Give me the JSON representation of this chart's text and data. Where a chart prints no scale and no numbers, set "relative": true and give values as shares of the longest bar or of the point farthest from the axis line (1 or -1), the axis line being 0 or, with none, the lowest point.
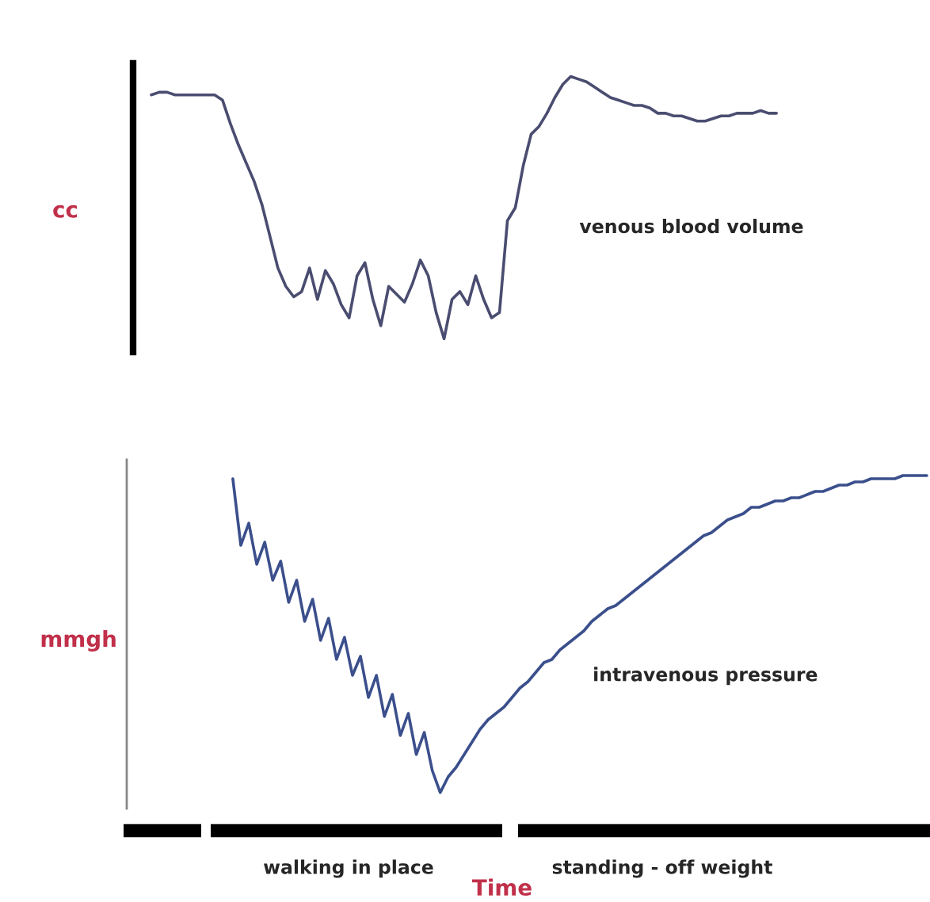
{
  "chart_data": [
    {
      "type": "line",
      "relative": true,
      "ylabel": "cc",
      "annotations": [
        "venous blood volume"
      ],
      "categories": [
        null,
        null,
        null,
        null,
        null,
        null,
        null,
        null,
        null,
        null,
        null,
        null,
        null,
        null,
        null,
        null,
        null,
        null,
        null,
        null,
        null,
        null,
        null,
        null,
        null,
        null,
        null,
        null,
        null,
        null,
        null,
        null,
        null,
        null,
        null,
        null,
        null,
        null,
        null,
        null,
        null,
        null,
        null,
        null,
        null,
        null,
        null,
        null,
        null,
        null,
        null,
        null,
        null,
        null,
        null,
        null,
        null,
        null,
        null,
        null,
        null,
        null,
        null,
        null,
        null,
        null,
        null,
        null,
        null,
        null,
        null,
        null,
        null,
        null,
        null,
        null,
        null,
        null,
        null,
        null,
        null,
        null,
        null,
        null,
        null,
        null,
        null,
        null,
        null,
        null,
        null,
        null,
        null,
        null,
        null,
        null,
        null,
        null,
        null,
        null,
        null
      ],
      "series": [
        {
          "color": "#4a4d70",
          "values": [
            null,
            null,
            0.93,
            0.94,
            0.94,
            0.93,
            0.93,
            0.93,
            0.93,
            0.93,
            0.93,
            0.91,
            0.82,
            0.74,
            0.67,
            0.6,
            0.51,
            0.39,
            0.27,
            0.2,
            0.16,
            0.18,
            0.27,
            0.15,
            0.26,
            0.21,
            0.13,
            0.08,
            0.24,
            0.29,
            0.15,
            0.05,
            0.2,
            0.17,
            0.14,
            0.21,
            0.3,
            0.24,
            0.1,
            0,
            0.15,
            0.18,
            0.13,
            0.24,
            0.15,
            0.08,
            0.1,
            0.45,
            0.5,
            0.66,
            0.78,
            0.81,
            0.86,
            0.92,
            0.97,
            1,
            0.99,
            0.98,
            0.96,
            0.94,
            0.92,
            0.91,
            0.9,
            0.89,
            0.89,
            0.88,
            0.86,
            0.86,
            0.85,
            0.85,
            0.84,
            0.83,
            0.83,
            0.84,
            0.85,
            0.85,
            0.86,
            0.86,
            0.86,
            0.87,
            0.86,
            0.86,
            null,
            null,
            null,
            null,
            null,
            null,
            null,
            null,
            null,
            null,
            null,
            null,
            null,
            null,
            null,
            null,
            null,
            null,
            null
          ]
        }
      ]
    },
    {
      "type": "line",
      "relative": true,
      "ylabel": "mmgh",
      "xlabel": "Time",
      "annotations": [
        "intravenous pressure",
        "walking in place",
        "standing - off weight"
      ],
      "categories": [
        null,
        null,
        null,
        null,
        null,
        null,
        null,
        null,
        null,
        null,
        null,
        null,
        null,
        null,
        null,
        null,
        null,
        null,
        null,
        null,
        null,
        null,
        null,
        null,
        null,
        null,
        null,
        null,
        null,
        null,
        null,
        null,
        null,
        null,
        null,
        null,
        null,
        null,
        null,
        null,
        null,
        null,
        null,
        null,
        null,
        null,
        null,
        null,
        null,
        null,
        null,
        null,
        null,
        null,
        null,
        null,
        null,
        null,
        null,
        null,
        null,
        null,
        null,
        null,
        null,
        null,
        null,
        null,
        null,
        null,
        null,
        null,
        null,
        null,
        null,
        null,
        null,
        null,
        null,
        null,
        null,
        null,
        null,
        null,
        null,
        null,
        null,
        null,
        null,
        null,
        null,
        null,
        null,
        null,
        null,
        null,
        null,
        null,
        null,
        null,
        null
      ],
      "series": [
        {
          "color": "#3b4f8c",
          "values": [
            null,
            null,
            null,
            null,
            null,
            null,
            null,
            null,
            null,
            null,
            null,
            null,
            null,
            0.99,
            0.78,
            0.85,
            0.72,
            0.79,
            0.67,
            0.73,
            0.6,
            0.67,
            0.54,
            0.61,
            0.48,
            0.55,
            0.42,
            0.49,
            0.37,
            0.43,
            0.3,
            0.37,
            0.24,
            0.31,
            0.18,
            0.25,
            0.12,
            0.19,
            0.07,
            0,
            0.05,
            0.08,
            0.12,
            0.16,
            0.2,
            0.23,
            0.25,
            0.27,
            0.3,
            0.33,
            0.35,
            0.38,
            0.41,
            0.42,
            0.45,
            0.47,
            0.49,
            0.51,
            0.54,
            0.56,
            0.58,
            0.59,
            0.61,
            0.63,
            0.65,
            0.67,
            0.69,
            0.71,
            0.73,
            0.75,
            0.77,
            0.79,
            0.81,
            0.82,
            0.84,
            0.86,
            0.87,
            0.88,
            0.9,
            0.9,
            0.91,
            0.92,
            0.92,
            0.93,
            0.93,
            0.94,
            0.95,
            0.95,
            0.96,
            0.97,
            0.97,
            0.98,
            0.98,
            0.99,
            0.99,
            0.99,
            0.99,
            1,
            1,
            1,
            1
          ]
        }
      ]
    }
  ]
}
